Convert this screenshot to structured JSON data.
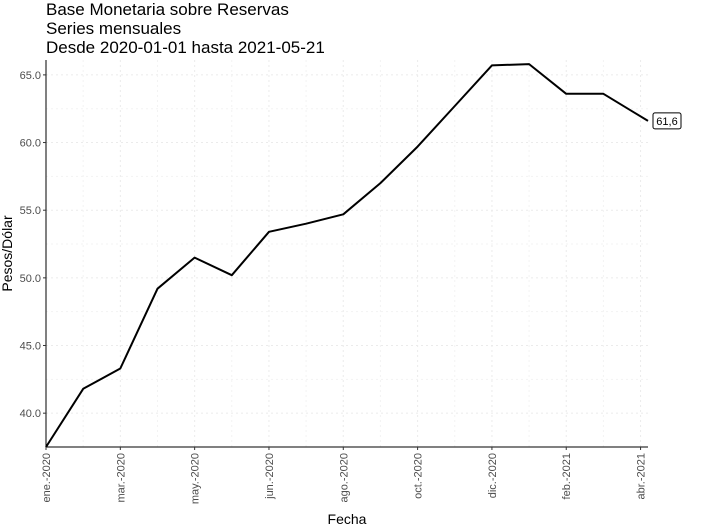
{
  "chart_data": {
    "type": "line",
    "title": "Base Monetaria sobre Reservas",
    "subtitle": "Series mensuales",
    "caption_range": "Desde 2020-01-01 hasta 2021-05-21",
    "xlabel": "Fecha",
    "ylabel": "Pesos/Dólar",
    "ylim": [
      37.5,
      66.1
    ],
    "yticks": [
      "40.0",
      "45.0",
      "50.0",
      "55.0",
      "60.0",
      "65.0"
    ],
    "yticks_values": [
      40,
      45,
      50,
      55,
      60,
      65
    ],
    "xticks": [
      {
        "label": "ene.-2020",
        "x": 0
      },
      {
        "label": "mar.-2020",
        "x": 2
      },
      {
        "label": "may.-2020",
        "x": 4
      },
      {
        "label": "jun.-2020",
        "x": 6
      },
      {
        "label": "ago.-2020",
        "x": 8
      },
      {
        "label": "oct.-2020",
        "x": 10
      },
      {
        "label": "dic.-2020",
        "x": 12
      },
      {
        "label": "feb.-2021",
        "x": 14
      },
      {
        "label": "abr.-2021",
        "x": 16
      }
    ],
    "xlim": [
      0,
      16.2
    ],
    "grid": true,
    "series": [
      {
        "x": [
          0,
          1,
          2,
          3,
          4,
          5,
          6,
          7,
          8,
          9,
          10,
          11,
          12,
          13,
          14,
          15,
          16.2
        ],
        "values": [
          37.5,
          41.8,
          43.3,
          49.2,
          51.5,
          50.2,
          53.4,
          54.0,
          54.7,
          57.0,
          59.7,
          62.7,
          65.7,
          65.8,
          63.6,
          63.6,
          61.6
        ]
      }
    ],
    "annotation": {
      "label": "61,6",
      "x": 16.2,
      "y": 61.6
    }
  }
}
